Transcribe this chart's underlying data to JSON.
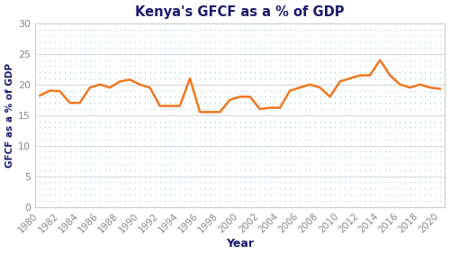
{
  "title": "Kenya's GFCF as a % of GDP",
  "xlabel": "Year",
  "ylabel": "GFCF as a % of GDP",
  "line_color": "#F07820",
  "line_width": 1.8,
  "background_color": "#ffffff",
  "dot_color": "#7ab0d4",
  "plot_bg_color": "#ffffff",
  "xlim": [
    1979.5,
    2020.5
  ],
  "ylim": [
    0,
    30
  ],
  "yticks": [
    0,
    5,
    10,
    15,
    20,
    25,
    30
  ],
  "xtick_step": 2,
  "title_color": "#1a1a6e",
  "label_color": "#1a1a6e",
  "tick_label_color": "#888888",
  "years": [
    1980,
    1981,
    1982,
    1983,
    1984,
    1985,
    1986,
    1987,
    1988,
    1989,
    1990,
    1991,
    1992,
    1993,
    1994,
    1995,
    1996,
    1997,
    1998,
    1999,
    2000,
    2001,
    2002,
    2003,
    2004,
    2005,
    2006,
    2007,
    2008,
    2009,
    2010,
    2011,
    2012,
    2013,
    2014,
    2015,
    2016,
    2017,
    2018,
    2019,
    2020
  ],
  "values": [
    18.2,
    19.0,
    18.9,
    17.0,
    17.0,
    19.5,
    20.0,
    19.5,
    20.5,
    20.8,
    20.0,
    19.5,
    16.5,
    16.5,
    16.5,
    21.0,
    15.5,
    15.5,
    15.5,
    17.5,
    18.0,
    18.0,
    16.0,
    16.2,
    16.2,
    19.0,
    19.5,
    20.0,
    19.5,
    18.0,
    20.5,
    21.0,
    21.5,
    21.5,
    24.0,
    21.5,
    20.0,
    19.5,
    20.0,
    19.5,
    19.3
  ]
}
